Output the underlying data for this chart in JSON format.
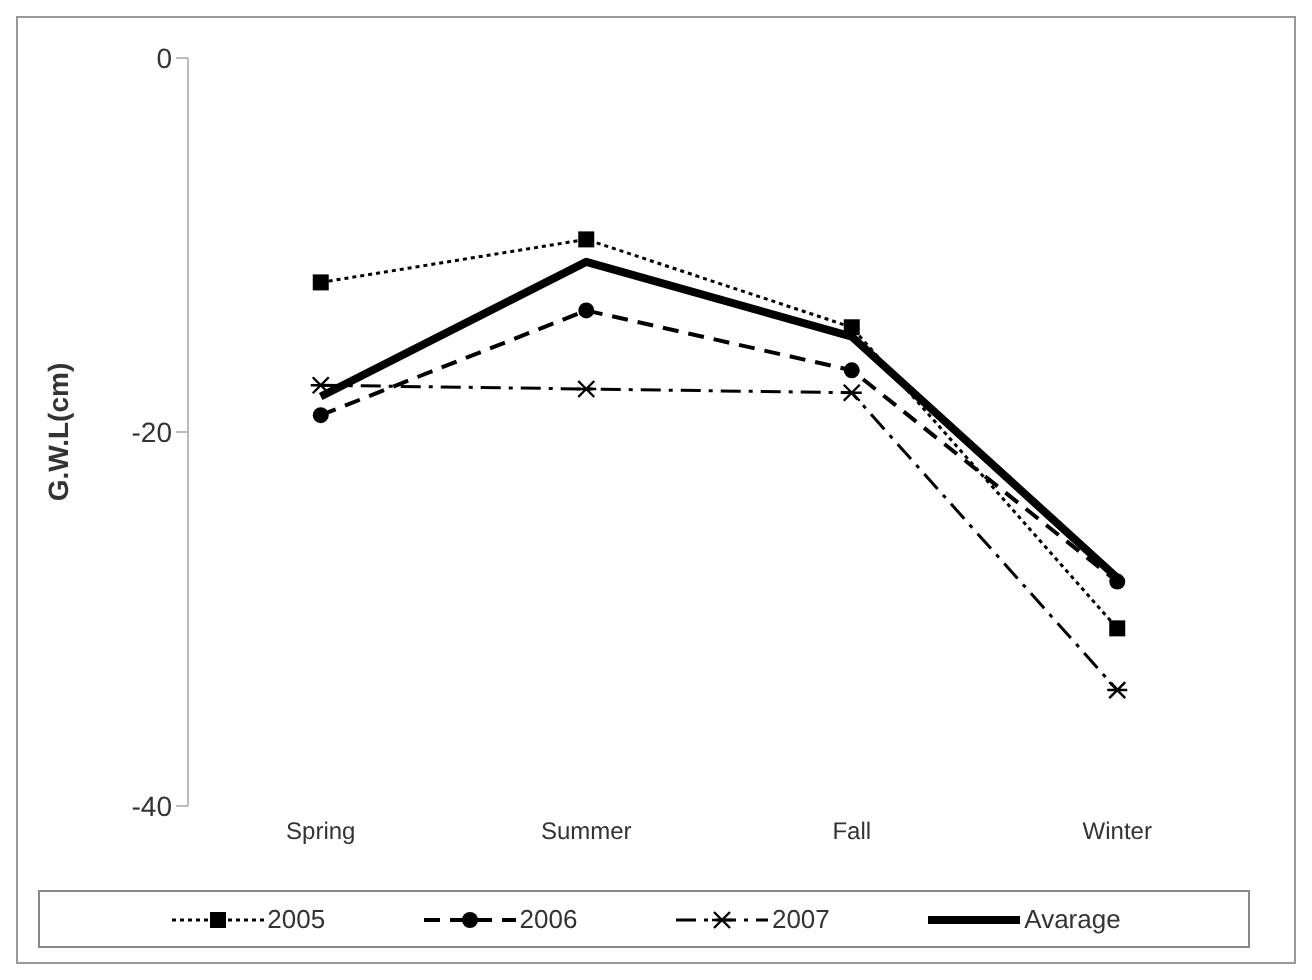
{
  "chart_data": {
    "type": "line",
    "ylabel": "G.W.L(cm)",
    "categories": [
      "Spring",
      "Summer",
      "Fall",
      "Winter"
    ],
    "series": [
      {
        "name": "2005",
        "color": "#000000",
        "values": [
          -12.0,
          -9.7,
          -14.4,
          -30.5
        ],
        "marker": "square",
        "line_style": "dotted"
      },
      {
        "name": "2006",
        "color": "#000000",
        "values": [
          -19.1,
          -13.5,
          -16.7,
          -28.0
        ],
        "marker": "circle",
        "line_style": "dashed"
      },
      {
        "name": "2007",
        "color": "#000000",
        "values": [
          -17.5,
          -17.7,
          -17.9,
          -33.8
        ],
        "marker": "cross",
        "line_style": "dashdot"
      },
      {
        "name": "Avarage",
        "color": "#000000",
        "values": [
          -18.1,
          -10.9,
          -14.9,
          -27.8
        ],
        "marker": "none",
        "line_style": "solid"
      }
    ],
    "ylim": [
      -40,
      0
    ],
    "yticks": [
      -40,
      -20,
      0
    ],
    "grid": false,
    "legend": "bottom"
  }
}
